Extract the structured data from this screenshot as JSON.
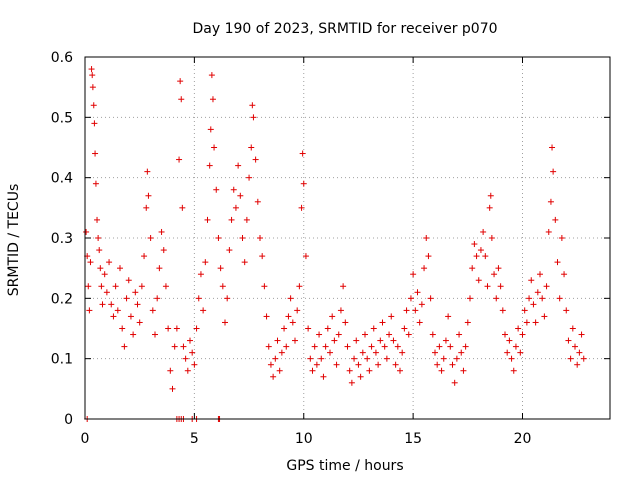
{
  "chart_data": {
    "type": "scatter",
    "title": "Day 190 of 2023, SRMTID for receiver p070",
    "xlabel": "GPS time / hours",
    "ylabel": "SRMTID / TECUs",
    "xlim": [
      0,
      24
    ],
    "ylim": [
      0,
      0.6
    ],
    "x_ticks": [
      0,
      5,
      10,
      15,
      20
    ],
    "y_ticks": [
      0,
      0.1,
      0.2,
      0.3,
      0.4,
      0.5,
      0.6
    ],
    "x_tick_labels": [
      "0",
      "5",
      "10",
      "15",
      "20"
    ],
    "y_tick_labels": [
      "0",
      "0.1",
      "0.2",
      "0.3",
      "0.4",
      "0.5",
      "0.6"
    ],
    "grid": true,
    "marker": "+",
    "color": "#e00000",
    "series": [
      {
        "name": "SRMTID",
        "points": [
          [
            0.05,
            0.31
          ],
          [
            0.1,
            0.27
          ],
          [
            0.15,
            0.22
          ],
          [
            0.2,
            0.18
          ],
          [
            0.25,
            0.26
          ],
          [
            0.3,
            0.58
          ],
          [
            0.33,
            0.57
          ],
          [
            0.36,
            0.55
          ],
          [
            0.4,
            0.52
          ],
          [
            0.43,
            0.49
          ],
          [
            0.46,
            0.44
          ],
          [
            0.5,
            0.39
          ],
          [
            0.55,
            0.33
          ],
          [
            0.6,
            0.3
          ],
          [
            0.65,
            0.28
          ],
          [
            0.7,
            0.25
          ],
          [
            0.75,
            0.22
          ],
          [
            0.8,
            0.19
          ],
          [
            0.9,
            0.24
          ],
          [
            1.0,
            0.21
          ],
          [
            1.1,
            0.26
          ],
          [
            1.2,
            0.19
          ],
          [
            1.3,
            0.17
          ],
          [
            1.4,
            0.22
          ],
          [
            1.5,
            0.18
          ],
          [
            1.6,
            0.25
          ],
          [
            1.7,
            0.15
          ],
          [
            1.8,
            0.12
          ],
          [
            1.9,
            0.2
          ],
          [
            2.0,
            0.23
          ],
          [
            2.1,
            0.17
          ],
          [
            2.2,
            0.14
          ],
          [
            2.3,
            0.21
          ],
          [
            2.4,
            0.19
          ],
          [
            2.5,
            0.16
          ],
          [
            2.6,
            0.22
          ],
          [
            2.7,
            0.27
          ],
          [
            2.8,
            0.35
          ],
          [
            2.85,
            0.41
          ],
          [
            2.9,
            0.37
          ],
          [
            3.0,
            0.3
          ],
          [
            3.1,
            0.18
          ],
          [
            3.2,
            0.14
          ],
          [
            3.3,
            0.2
          ],
          [
            3.4,
            0.25
          ],
          [
            3.5,
            0.31
          ],
          [
            3.6,
            0.28
          ],
          [
            3.7,
            0.22
          ],
          [
            3.8,
            0.15
          ],
          [
            3.9,
            0.08
          ],
          [
            4.0,
            0.05
          ],
          [
            4.1,
            0.12
          ],
          [
            4.2,
            0.15
          ],
          [
            4.3,
            0.43
          ],
          [
            4.35,
            0.56
          ],
          [
            4.4,
            0.53
          ],
          [
            4.45,
            0.35
          ],
          [
            4.5,
            0.12
          ],
          [
            4.6,
            0.1
          ],
          [
            4.7,
            0.08
          ],
          [
            4.8,
            0.13
          ],
          [
            4.9,
            0.11
          ],
          [
            5.0,
            0.09
          ],
          [
            5.1,
            0.15
          ],
          [
            5.2,
            0.2
          ],
          [
            5.3,
            0.24
          ],
          [
            5.4,
            0.18
          ],
          [
            5.5,
            0.26
          ],
          [
            5.6,
            0.33
          ],
          [
            5.7,
            0.42
          ],
          [
            5.75,
            0.48
          ],
          [
            5.8,
            0.57
          ],
          [
            5.85,
            0.53
          ],
          [
            5.9,
            0.45
          ],
          [
            6.0,
            0.38
          ],
          [
            6.1,
            0.3
          ],
          [
            6.2,
            0.25
          ],
          [
            6.3,
            0.22
          ],
          [
            6.4,
            0.16
          ],
          [
            6.5,
            0.2
          ],
          [
            6.6,
            0.28
          ],
          [
            6.7,
            0.33
          ],
          [
            6.8,
            0.38
          ],
          [
            6.9,
            0.35
          ],
          [
            7.0,
            0.42
          ],
          [
            7.1,
            0.37
          ],
          [
            7.2,
            0.3
          ],
          [
            7.3,
            0.26
          ],
          [
            7.4,
            0.33
          ],
          [
            7.5,
            0.4
          ],
          [
            7.6,
            0.45
          ],
          [
            7.65,
            0.52
          ],
          [
            7.7,
            0.5
          ],
          [
            7.8,
            0.43
          ],
          [
            7.9,
            0.36
          ],
          [
            8.0,
            0.3
          ],
          [
            8.1,
            0.27
          ],
          [
            8.2,
            0.22
          ],
          [
            8.3,
            0.17
          ],
          [
            8.4,
            0.12
          ],
          [
            8.5,
            0.09
          ],
          [
            8.6,
            0.07
          ],
          [
            8.7,
            0.1
          ],
          [
            8.8,
            0.13
          ],
          [
            8.9,
            0.08
          ],
          [
            9.0,
            0.11
          ],
          [
            9.1,
            0.15
          ],
          [
            9.2,
            0.12
          ],
          [
            9.3,
            0.17
          ],
          [
            9.4,
            0.2
          ],
          [
            9.5,
            0.16
          ],
          [
            9.6,
            0.13
          ],
          [
            9.7,
            0.18
          ],
          [
            9.8,
            0.22
          ],
          [
            9.9,
            0.35
          ],
          [
            9.95,
            0.44
          ],
          [
            10.0,
            0.39
          ],
          [
            10.1,
            0.27
          ],
          [
            10.2,
            0.15
          ],
          [
            10.3,
            0.1
          ],
          [
            10.4,
            0.08
          ],
          [
            10.5,
            0.12
          ],
          [
            10.6,
            0.09
          ],
          [
            10.7,
            0.14
          ],
          [
            10.8,
            0.1
          ],
          [
            10.9,
            0.07
          ],
          [
            11.0,
            0.12
          ],
          [
            11.1,
            0.15
          ],
          [
            11.2,
            0.11
          ],
          [
            11.3,
            0.17
          ],
          [
            11.4,
            0.13
          ],
          [
            11.5,
            0.09
          ],
          [
            11.6,
            0.14
          ],
          [
            11.7,
            0.18
          ],
          [
            11.8,
            0.22
          ],
          [
            11.9,
            0.16
          ],
          [
            12.0,
            0.12
          ],
          [
            12.1,
            0.08
          ],
          [
            12.2,
            0.06
          ],
          [
            12.3,
            0.1
          ],
          [
            12.4,
            0.13
          ],
          [
            12.5,
            0.09
          ],
          [
            12.6,
            0.07
          ],
          [
            12.7,
            0.11
          ],
          [
            12.8,
            0.14
          ],
          [
            12.9,
            0.1
          ],
          [
            13.0,
            0.08
          ],
          [
            13.1,
            0.12
          ],
          [
            13.2,
            0.15
          ],
          [
            13.3,
            0.11
          ],
          [
            13.4,
            0.09
          ],
          [
            13.5,
            0.13
          ],
          [
            13.6,
            0.16
          ],
          [
            13.7,
            0.12
          ],
          [
            13.8,
            0.1
          ],
          [
            13.9,
            0.14
          ],
          [
            14.0,
            0.17
          ],
          [
            14.1,
            0.13
          ],
          [
            14.2,
            0.09
          ],
          [
            14.3,
            0.12
          ],
          [
            14.4,
            0.08
          ],
          [
            14.5,
            0.11
          ],
          [
            14.6,
            0.15
          ],
          [
            14.7,
            0.18
          ],
          [
            14.8,
            0.14
          ],
          [
            14.9,
            0.2
          ],
          [
            15.0,
            0.24
          ],
          [
            15.1,
            0.18
          ],
          [
            15.2,
            0.21
          ],
          [
            15.3,
            0.16
          ],
          [
            15.4,
            0.19
          ],
          [
            15.5,
            0.25
          ],
          [
            15.6,
            0.3
          ],
          [
            15.7,
            0.27
          ],
          [
            15.8,
            0.2
          ],
          [
            15.9,
            0.14
          ],
          [
            16.0,
            0.11
          ],
          [
            16.1,
            0.09
          ],
          [
            16.2,
            0.12
          ],
          [
            16.3,
            0.08
          ],
          [
            16.4,
            0.1
          ],
          [
            16.5,
            0.13
          ],
          [
            16.6,
            0.17
          ],
          [
            16.7,
            0.12
          ],
          [
            16.8,
            0.09
          ],
          [
            16.9,
            0.06
          ],
          [
            17.0,
            0.1
          ],
          [
            17.1,
            0.14
          ],
          [
            17.2,
            0.11
          ],
          [
            17.3,
            0.08
          ],
          [
            17.4,
            0.12
          ],
          [
            17.5,
            0.16
          ],
          [
            17.6,
            0.2
          ],
          [
            17.7,
            0.25
          ],
          [
            17.8,
            0.29
          ],
          [
            17.9,
            0.27
          ],
          [
            18.0,
            0.23
          ],
          [
            18.1,
            0.28
          ],
          [
            18.2,
            0.31
          ],
          [
            18.3,
            0.27
          ],
          [
            18.4,
            0.22
          ],
          [
            18.5,
            0.35
          ],
          [
            18.55,
            0.37
          ],
          [
            18.6,
            0.3
          ],
          [
            18.7,
            0.24
          ],
          [
            18.8,
            0.2
          ],
          [
            18.9,
            0.25
          ],
          [
            19.0,
            0.22
          ],
          [
            19.1,
            0.18
          ],
          [
            19.2,
            0.14
          ],
          [
            19.3,
            0.11
          ],
          [
            19.4,
            0.13
          ],
          [
            19.5,
            0.1
          ],
          [
            19.6,
            0.08
          ],
          [
            19.7,
            0.12
          ],
          [
            19.8,
            0.15
          ],
          [
            19.9,
            0.11
          ],
          [
            20.0,
            0.14
          ],
          [
            20.1,
            0.18
          ],
          [
            20.2,
            0.16
          ],
          [
            20.3,
            0.2
          ],
          [
            20.4,
            0.23
          ],
          [
            20.5,
            0.19
          ],
          [
            20.6,
            0.16
          ],
          [
            20.7,
            0.21
          ],
          [
            20.8,
            0.24
          ],
          [
            20.9,
            0.2
          ],
          [
            21.0,
            0.17
          ],
          [
            21.1,
            0.22
          ],
          [
            21.2,
            0.31
          ],
          [
            21.3,
            0.36
          ],
          [
            21.35,
            0.45
          ],
          [
            21.4,
            0.41
          ],
          [
            21.5,
            0.33
          ],
          [
            21.6,
            0.26
          ],
          [
            21.7,
            0.2
          ],
          [
            21.8,
            0.3
          ],
          [
            21.9,
            0.24
          ],
          [
            22.0,
            0.18
          ],
          [
            22.1,
            0.13
          ],
          [
            22.2,
            0.1
          ],
          [
            22.3,
            0.15
          ],
          [
            22.4,
            0.12
          ],
          [
            22.5,
            0.09
          ],
          [
            22.6,
            0.11
          ],
          [
            22.7,
            0.14
          ],
          [
            22.8,
            0.1
          ],
          [
            0.1,
            0.0
          ],
          [
            4.2,
            0.0
          ],
          [
            4.3,
            0.0
          ],
          [
            4.4,
            0.0
          ],
          [
            4.5,
            0.0
          ],
          [
            4.9,
            0.0
          ],
          [
            5.1,
            0.0
          ],
          [
            6.1,
            0.0
          ],
          [
            6.15,
            0.0
          ]
        ]
      }
    ]
  }
}
